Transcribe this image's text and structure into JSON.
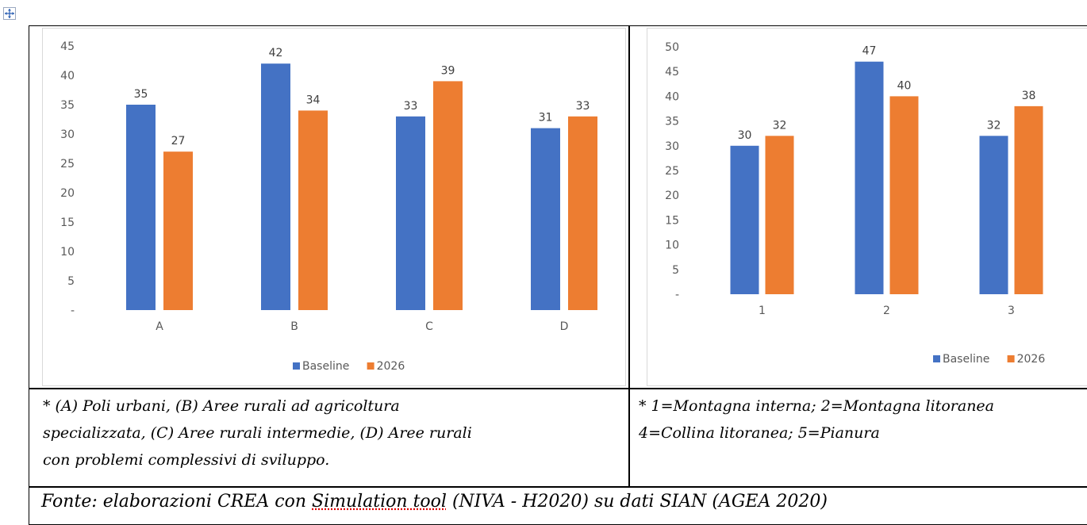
{
  "chart_data": [
    {
      "type": "bar",
      "categories": [
        "A",
        "B",
        "C",
        "D"
      ],
      "series": [
        {
          "name": "Baseline",
          "values": [
            35,
            42,
            33,
            31
          ],
          "color": "#4472c4"
        },
        {
          "name": "2026",
          "values": [
            27,
            34,
            39,
            33
          ],
          "color": "#ed7d31"
        }
      ],
      "data_labels": [
        [
          "35",
          "42",
          "33",
          "31"
        ],
        [
          "27",
          "34",
          "39",
          "33"
        ]
      ],
      "ylim": [
        0,
        45
      ],
      "yticks": [
        "-",
        "5",
        "10",
        "15",
        "20",
        "25",
        "30",
        "35",
        "40",
        "45"
      ],
      "grid": false,
      "legend": "bottom"
    },
    {
      "type": "bar",
      "categories": [
        "1",
        "2",
        "3"
      ],
      "series": [
        {
          "name": "Baseline",
          "values": [
            30,
            47,
            32
          ],
          "color": "#4472c4"
        },
        {
          "name": "2026",
          "values": [
            32,
            40,
            38
          ],
          "color": "#ed7d31"
        }
      ],
      "data_labels": [
        [
          "30",
          "47",
          "32"
        ],
        [
          "32",
          "40",
          "38"
        ]
      ],
      "ylim": [
        0,
        50
      ],
      "yticks": [
        "-",
        "5",
        "10",
        "15",
        "20",
        "25",
        "30",
        "35",
        "40",
        "45",
        "50"
      ],
      "grid": false,
      "legend": "bottom-right"
    }
  ],
  "notes": {
    "left": [
      "* (A) Poli urbani, (B) Aree rurali ad agricoltura",
      "specializzata, (C) Aree rurali intermedie, (D) Aree rurali",
      "con problemi complessivi di sviluppo."
    ],
    "right": [
      "* 1=Montagna interna; 2=Montagna litoranea",
      "4=Collina litoranea; 5=Pianura"
    ]
  },
  "source": {
    "prefix": "Fonte: elaborazioni CREA con ",
    "underlined": "Simulation tool",
    "suffix": " (NIVA - H2020) su dati SIAN (AGEA 2020)"
  },
  "icons": {
    "table_handle": "move-icon"
  }
}
